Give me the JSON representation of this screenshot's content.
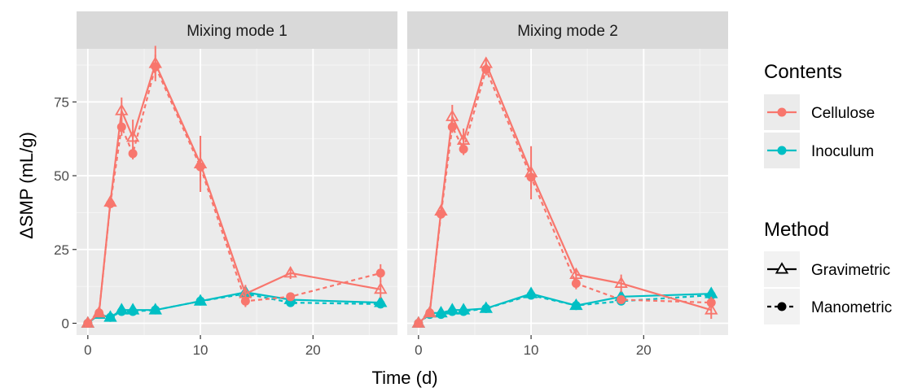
{
  "chart_data": {
    "type": "line",
    "xlabel": "Time (d)",
    "ylabel": "ΔSMP (mL/g)",
    "xlim": [
      -1,
      27.5
    ],
    "ylim": [
      -4,
      93
    ],
    "x_ticks": [
      0,
      10,
      20
    ],
    "y_ticks": [
      0,
      25,
      50,
      75
    ],
    "x_tick_labels": [
      "0",
      "10",
      "20"
    ],
    "y_tick_labels": [
      "0",
      "25",
      "50",
      "75"
    ],
    "grid": true,
    "legend_position": "right",
    "colors": {
      "Cellulose": "#f8766d",
      "Inoculum": "#00bfc4"
    },
    "legend": {
      "contents_title": "Contents",
      "contents": [
        "Cellulose",
        "Inoculum"
      ],
      "method_title": "Method",
      "methods": [
        "Gravimetric",
        "Manometric"
      ]
    },
    "panels": [
      {
        "title": "Mixing mode 1",
        "series": [
          {
            "contents": "Cellulose",
            "method": "Gravimetric",
            "x": [
              0,
              1,
              2,
              3,
              4,
              6,
              10,
              14,
              18,
              26
            ],
            "y": [
              0,
              3.5,
              41,
              72,
              63,
              88,
              54,
              10,
              17,
              11.5
            ],
            "err": [
              0,
              0,
              0,
              4.5,
              6,
              6,
              9.5,
              3,
              2,
              3
            ]
          },
          {
            "contents": "Cellulose",
            "method": "Manometric",
            "x": [
              0,
              1,
              2,
              3,
              4,
              6,
              10,
              14,
              18,
              26
            ],
            "y": [
              0,
              3.5,
              40.5,
              66.5,
              57.5,
              87,
              53,
              7.5,
              9,
              17
            ],
            "err": [
              0,
              0,
              0,
              3,
              2,
              4,
              5,
              2,
              0,
              3
            ]
          },
          {
            "contents": "Inoculum",
            "method": "Gravimetric",
            "x": [
              0,
              1,
              2,
              3,
              4,
              6,
              10,
              14,
              18,
              26
            ],
            "y": [
              0,
              3,
              2,
              4.5,
              4.5,
              4.5,
              7.5,
              10.5,
              8,
              7
            ],
            "err": [
              0,
              0,
              0,
              0,
              0,
              0,
              0,
              0,
              0,
              0
            ]
          },
          {
            "contents": "Inoculum",
            "method": "Manometric",
            "x": [
              0,
              1,
              2,
              3,
              4,
              6,
              10,
              14,
              18,
              26
            ],
            "y": [
              0,
              3,
              2,
              4,
              4,
              4.5,
              7.5,
              10,
              7,
              6.5
            ],
            "err": [
              0,
              0,
              0,
              0,
              0,
              0,
              0,
              0,
              0,
              0
            ]
          }
        ]
      },
      {
        "title": "Mixing mode 2",
        "series": [
          {
            "contents": "Cellulose",
            "method": "Gravimetric",
            "x": [
              0,
              1,
              2,
              3,
              4,
              6,
              10,
              14,
              18,
              26
            ],
            "y": [
              0,
              3.5,
              38,
              70,
              62,
              88,
              51,
              16.5,
              13.5,
              4.5
            ],
            "err": [
              0,
              0,
              2,
              4,
              4,
              2,
              9,
              2,
              3,
              3
            ]
          },
          {
            "contents": "Cellulose",
            "method": "Manometric",
            "x": [
              0,
              1,
              2,
              3,
              4,
              6,
              10,
              14,
              18,
              26
            ],
            "y": [
              0,
              3.5,
              37,
              66.5,
              59,
              86,
              49.5,
              13.5,
              8,
              7
            ],
            "err": [
              0,
              0,
              0,
              2,
              2,
              2,
              4,
              2,
              0,
              2
            ]
          },
          {
            "contents": "Inoculum",
            "method": "Gravimetric",
            "x": [
              0,
              1,
              2,
              3,
              4,
              6,
              10,
              14,
              18,
              26
            ],
            "y": [
              0,
              3.5,
              3.5,
              4.5,
              4.5,
              5,
              10,
              6,
              9,
              10
            ],
            "err": [
              0,
              0,
              0,
              0,
              0,
              0,
              0,
              0,
              0,
              0
            ]
          },
          {
            "contents": "Inoculum",
            "method": "Manometric",
            "x": [
              0,
              1,
              2,
              3,
              4,
              6,
              10,
              14,
              18,
              26
            ],
            "y": [
              0,
              3,
              3,
              4,
              4,
              5,
              9.5,
              6,
              7.5,
              9.5
            ],
            "err": [
              0,
              0,
              0,
              0,
              0,
              0,
              0,
              0,
              0,
              0
            ]
          }
        ]
      }
    ]
  }
}
